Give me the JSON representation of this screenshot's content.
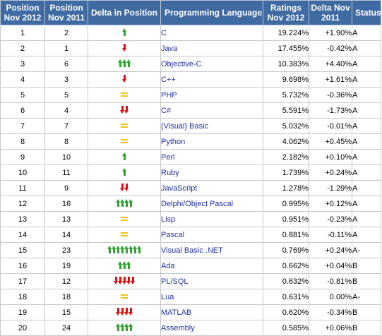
{
  "headers": {
    "pos2012": "Position Nov 2012",
    "pos2011": "Position Nov 2011",
    "delta_pos": "Delta in Position",
    "language": "Programming Language",
    "ratings": "Ratings Nov 2012",
    "delta_rating": "Delta Nov 2011",
    "status": "Status"
  },
  "colors": {
    "header_bg": "#3f6ba2",
    "up": "#2fa52f",
    "down": "#dd1111",
    "same": "#f3c400",
    "link": "#1f2f9e"
  },
  "rows": [
    {
      "pos2012": "1",
      "pos2011": "2",
      "change": 1,
      "language": "C",
      "rating": "19.224%",
      "delta": "+1.90%",
      "status": "A"
    },
    {
      "pos2012": "2",
      "pos2011": "1",
      "change": -1,
      "language": "Java",
      "rating": "17.455%",
      "delta": "-0.42%",
      "status": "A"
    },
    {
      "pos2012": "3",
      "pos2011": "6",
      "change": 3,
      "language": "Objective-C",
      "rating": "10.383%",
      "delta": "+4.40%",
      "status": "A"
    },
    {
      "pos2012": "4",
      "pos2011": "3",
      "change": -1,
      "language": "C++",
      "rating": "9.698%",
      "delta": "+1.61%",
      "status": "A"
    },
    {
      "pos2012": "5",
      "pos2011": "5",
      "change": 0,
      "language": "PHP",
      "rating": "5.732%",
      "delta": "-0.36%",
      "status": "A"
    },
    {
      "pos2012": "6",
      "pos2011": "4",
      "change": -2,
      "language": "C#",
      "rating": "5.591%",
      "delta": "-1.73%",
      "status": "A"
    },
    {
      "pos2012": "7",
      "pos2011": "7",
      "change": 0,
      "language": "(Visual) Basic",
      "rating": "5.032%",
      "delta": "-0.01%",
      "status": "A"
    },
    {
      "pos2012": "8",
      "pos2011": "8",
      "change": 0,
      "language": "Python",
      "rating": "4.062%",
      "delta": "+0.45%",
      "status": "A"
    },
    {
      "pos2012": "9",
      "pos2011": "10",
      "change": 1,
      "language": "Perl",
      "rating": "2.182%",
      "delta": "+0.10%",
      "status": "A"
    },
    {
      "pos2012": "10",
      "pos2011": "11",
      "change": 1,
      "language": "Ruby",
      "rating": "1.739%",
      "delta": "+0.24%",
      "status": "A"
    },
    {
      "pos2012": "11",
      "pos2011": "9",
      "change": -2,
      "language": "JavaScript",
      "rating": "1.278%",
      "delta": "-1.29%",
      "status": "A"
    },
    {
      "pos2012": "12",
      "pos2011": "16",
      "change": 4,
      "language": "Delphi/Object Pascal",
      "rating": "0.995%",
      "delta": "+0.12%",
      "status": "A"
    },
    {
      "pos2012": "13",
      "pos2011": "13",
      "change": 0,
      "language": "Lisp",
      "rating": "0.951%",
      "delta": "-0.23%",
      "status": "A"
    },
    {
      "pos2012": "14",
      "pos2011": "14",
      "change": 0,
      "language": "Pascal",
      "rating": "0.881%",
      "delta": "-0.11%",
      "status": "A"
    },
    {
      "pos2012": "15",
      "pos2011": "23",
      "change": 8,
      "language": "Visual Basic .NET",
      "rating": "0.769%",
      "delta": "+0.24%",
      "status": "A-"
    },
    {
      "pos2012": "16",
      "pos2011": "19",
      "change": 3,
      "language": "Ada",
      "rating": "0.662%",
      "delta": "+0.04%",
      "status": "B"
    },
    {
      "pos2012": "17",
      "pos2011": "12",
      "change": -5,
      "language": "PL/SQL",
      "rating": "0.632%",
      "delta": "-0.81%",
      "status": "B"
    },
    {
      "pos2012": "18",
      "pos2011": "18",
      "change": 0,
      "language": "Lua",
      "rating": "0.631%",
      "delta": "0.00%",
      "status": "A-"
    },
    {
      "pos2012": "19",
      "pos2011": "15",
      "change": -4,
      "language": "MATLAB",
      "rating": "0.620%",
      "delta": "-0.34%",
      "status": "B"
    },
    {
      "pos2012": "20",
      "pos2011": "24",
      "change": 4,
      "language": "Assembly",
      "rating": "0.585%",
      "delta": "+0.06%",
      "status": "B"
    }
  ]
}
